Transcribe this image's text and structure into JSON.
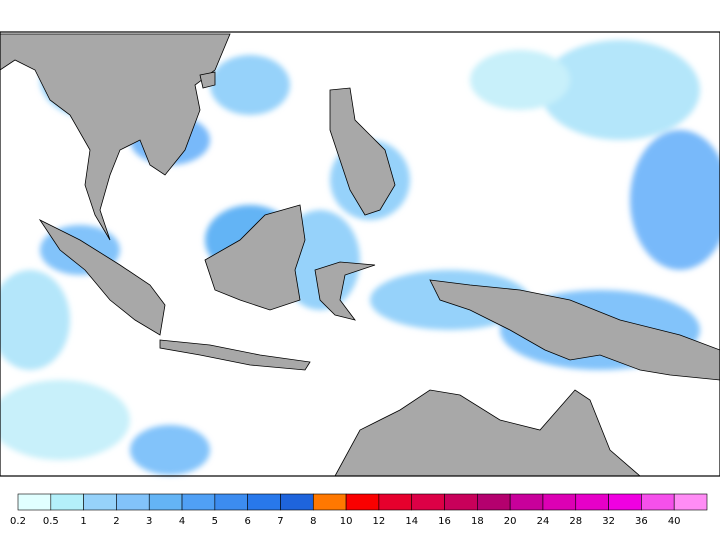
{
  "colorbar": {
    "labels": [
      "0.2",
      "0.5",
      "1",
      "2",
      "3",
      "4",
      "5",
      "6",
      "7",
      "8",
      "10",
      "12",
      "14",
      "16",
      "18",
      "20",
      "24",
      "28",
      "32",
      "36",
      "40"
    ],
    "colors": [
      "#e1ffff",
      "#b4f0fa",
      "#96d2fa",
      "#82c3fa",
      "#64b4f5",
      "#50a0f5",
      "#3c8cf0",
      "#2878eb",
      "#1e64dc",
      "#ff7800",
      "#fa0000",
      "#e6002d",
      "#dc0046",
      "#c8005a",
      "#b4006e",
      "#c8009b",
      "#dc00b4",
      "#e600c8",
      "#f000e1",
      "#f550eb",
      "#ff8cf5"
    ]
  }
}
